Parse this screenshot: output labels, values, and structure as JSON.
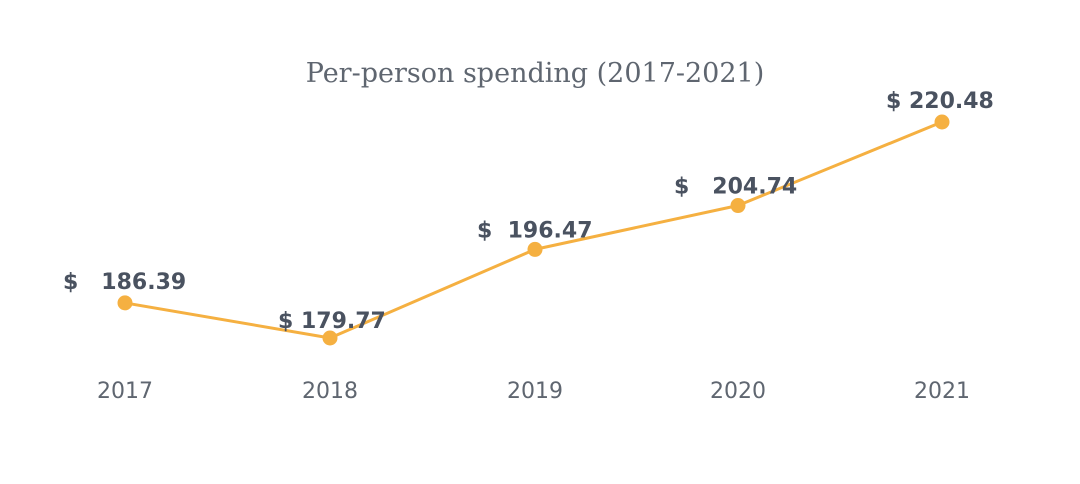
{
  "chart_data": {
    "type": "line",
    "title": "Per-person spending (2017-2021)",
    "xlabel": "",
    "ylabel": "",
    "categories": [
      "2017",
      "2018",
      "2019",
      "2020",
      "2021"
    ],
    "series": [
      {
        "values": [
          186.39,
          179.77,
          196.47,
          204.74,
          220.48
        ],
        "labels": [
          "$   186.39",
          "$ 179.77",
          "$  196.47",
          "$   204.74",
          "$ 220.48"
        ]
      }
    ],
    "ylim": [
      170,
      225
    ],
    "grid": false,
    "legend": "none",
    "colors": {
      "line": "#f5b041",
      "marker": "#f5b041",
      "label": "#4a5260",
      "tick": "#5f6670",
      "title": "#5f6670"
    }
  }
}
